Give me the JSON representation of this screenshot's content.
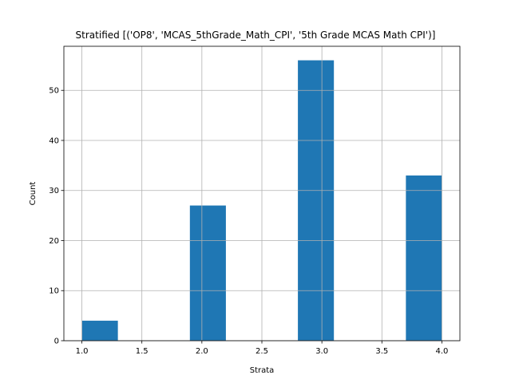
{
  "chart_data": {
    "type": "bar",
    "title": "Stratified [('OP8', 'MCAS_5thGrade_Math_CPI', '5th Grade MCAS Math CPI')]",
    "xlabel": "Strata",
    "ylabel": "Count",
    "xlim": [
      0.85,
      4.15
    ],
    "ylim": [
      0,
      58.8
    ],
    "xticks": [
      1.0,
      1.5,
      2.0,
      2.5,
      3.0,
      3.5,
      4.0
    ],
    "xtick_labels": [
      "1.0",
      "1.5",
      "2.0",
      "2.5",
      "3.0",
      "3.5",
      "4.0"
    ],
    "yticks": [
      0,
      10,
      20,
      30,
      40,
      50
    ],
    "ytick_labels": [
      "0",
      "10",
      "20",
      "30",
      "40",
      "50"
    ],
    "grid": true,
    "bar_color": "#1f77b4",
    "bins": [
      {
        "x0": 1.0,
        "x1": 1.3,
        "count": 4
      },
      {
        "x0": 1.3,
        "x1": 1.6,
        "count": 0
      },
      {
        "x0": 1.6,
        "x1": 1.9,
        "count": 0
      },
      {
        "x0": 1.9,
        "x1": 2.2,
        "count": 27
      },
      {
        "x0": 2.2,
        "x1": 2.5,
        "count": 0
      },
      {
        "x0": 2.5,
        "x1": 2.8,
        "count": 0
      },
      {
        "x0": 2.8,
        "x1": 3.1,
        "count": 56
      },
      {
        "x0": 3.1,
        "x1": 3.4,
        "count": 0
      },
      {
        "x0": 3.4,
        "x1": 3.7,
        "count": 0
      },
      {
        "x0": 3.7,
        "x1": 4.0,
        "count": 33
      }
    ]
  }
}
